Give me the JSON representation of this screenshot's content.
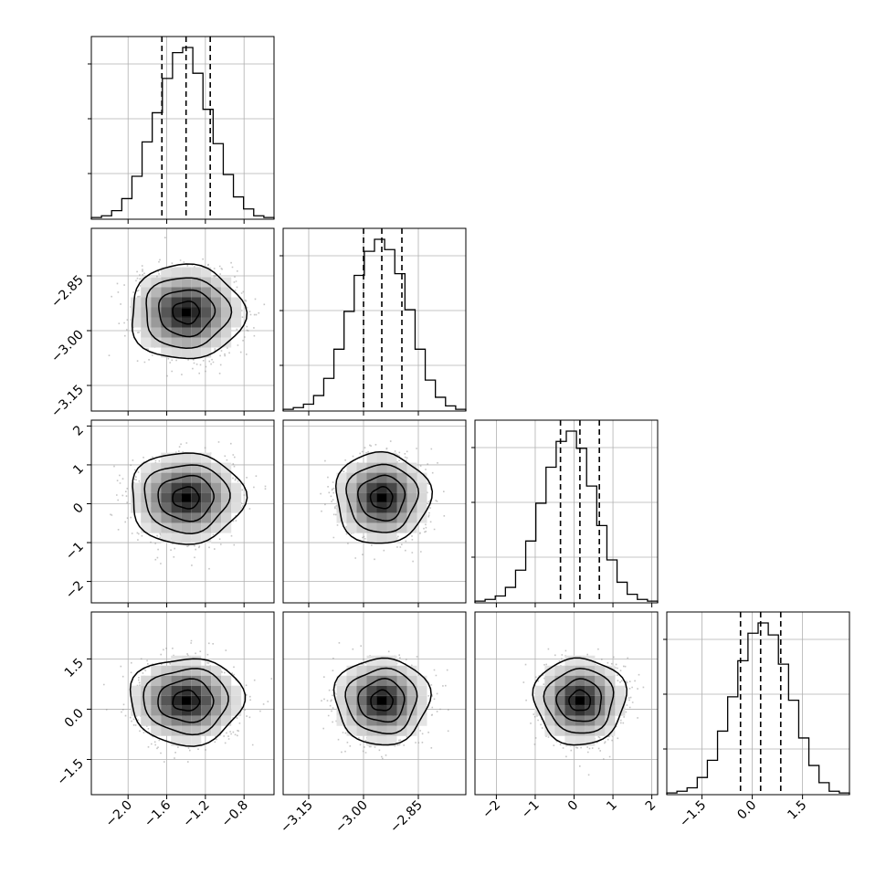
{
  "chart_data": {
    "type": "corner",
    "colors": {
      "line": "#000000",
      "grid": "#b0b0b0",
      "scatter": "#8c8c8c"
    },
    "parameters": [
      {
        "ticks": [
          -2.0,
          -1.6,
          -1.2,
          -0.8
        ],
        "tick_labels": [
          "−2.0",
          "−1.6",
          "−1.2",
          "−0.8"
        ],
        "range": [
          -2.38,
          -0.49
        ],
        "quantiles": [
          -1.65,
          -1.4,
          -1.15
        ],
        "mean": -1.4,
        "sd": 0.25,
        "hist": [
          0.01,
          0.02,
          0.05,
          0.12,
          0.25,
          0.45,
          0.62,
          0.82,
          0.97,
          1.0,
          0.85,
          0.64,
          0.44,
          0.26,
          0.13,
          0.06,
          0.02,
          0.01
        ]
      },
      {
        "ticks": [
          -3.15,
          -3.0,
          -2.85
        ],
        "tick_labels": [
          "−3.15",
          "−3.00",
          "−2.85"
        ],
        "range": [
          -3.22,
          -2.72
        ],
        "quantiles": [
          -3.0,
          -2.95,
          -2.895
        ],
        "mean": -2.95,
        "sd": 0.055,
        "hist": [
          0.01,
          0.02,
          0.04,
          0.09,
          0.19,
          0.36,
          0.58,
          0.79,
          0.93,
          1.0,
          0.94,
          0.8,
          0.59,
          0.36,
          0.18,
          0.08,
          0.03,
          0.01
        ]
      },
      {
        "ticks": [
          -2,
          -1,
          0,
          1,
          2
        ],
        "tick_labels": [
          "−2",
          "−1",
          "0",
          "1",
          "2"
        ],
        "range": [
          -2.55,
          2.15
        ],
        "quantiles": [
          -0.35,
          0.15,
          0.65
        ],
        "mean": 0.15,
        "sd": 0.5,
        "hist": [
          0.01,
          0.02,
          0.04,
          0.09,
          0.19,
          0.36,
          0.58,
          0.79,
          0.94,
          1.0,
          0.9,
          0.68,
          0.45,
          0.25,
          0.12,
          0.05,
          0.02,
          0.01
        ]
      },
      {
        "ticks": [
          -1.5,
          0.0,
          1.5
        ],
        "tick_labels": [
          "−1.5",
          "0.0",
          "1.5"
        ],
        "range": [
          -2.55,
          2.9
        ],
        "quantiles": [
          -0.35,
          0.25,
          0.85
        ],
        "mean": 0.25,
        "sd": 0.55,
        "hist": [
          0.01,
          0.02,
          0.04,
          0.1,
          0.2,
          0.37,
          0.57,
          0.78,
          0.94,
          1.0,
          0.93,
          0.76,
          0.55,
          0.33,
          0.17,
          0.07,
          0.02,
          0.01
        ]
      }
    ]
  }
}
